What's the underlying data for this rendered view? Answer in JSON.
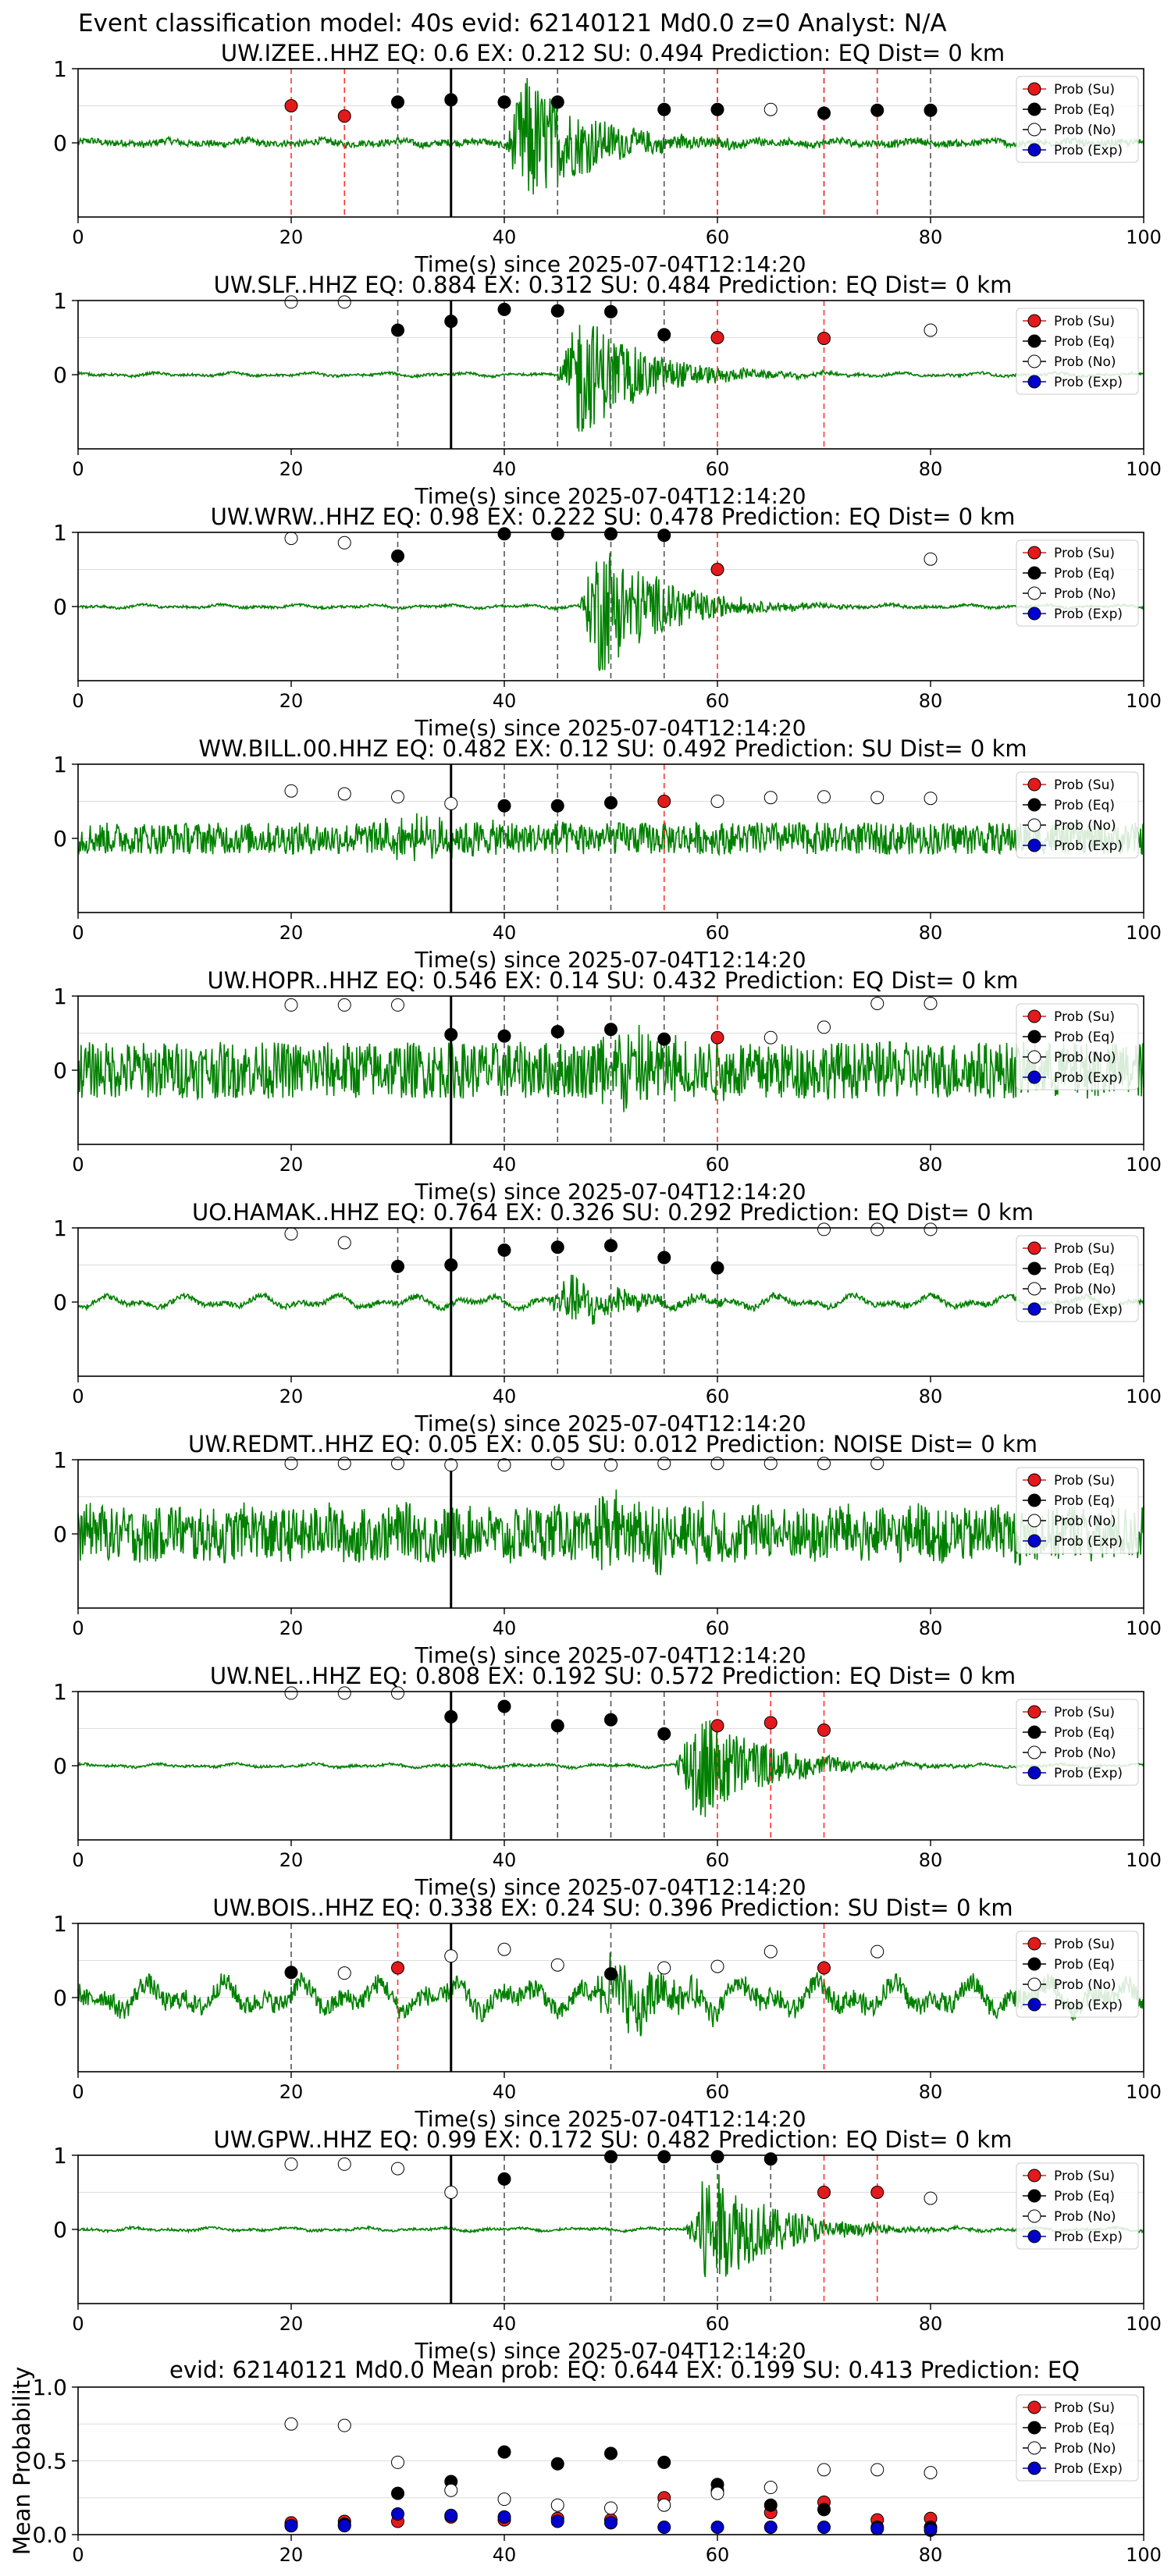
{
  "figure_title": "Event classification model: 40s evid: 62140121 Md0.0 z=0 Analyst: N/A",
  "legend_labels": [
    "Prob (Su)",
    "Prob (Eq)",
    "Prob (No)",
    "Prob (Exp)"
  ],
  "colors": {
    "waveform": "#008000",
    "su": "#e31a1c",
    "eq": "#000000",
    "no": "#ffffff",
    "exp": "#0000cc",
    "pick_red": "#ff3333",
    "pick_dark": "#555555",
    "grid": "#dddddd"
  },
  "chart_data": [
    {
      "type": "line",
      "station": "UW.IZEE..HHZ",
      "title": "UW.IZEE..HHZ   EQ: 0.6  EX: 0.212  SU: 0.494   Prediction: EQ    Dist= 0 km",
      "xlabel": "Time(s) since 2025-07-04T12:14:20",
      "xlim": [
        0,
        100
      ],
      "ylim": [
        -1,
        1
      ],
      "xticks": [
        "0",
        "20",
        "40",
        "60",
        "80",
        "100"
      ],
      "yticks": [
        "1",
        "0"
      ],
      "waveform": {
        "character": "moderate",
        "burst_center": 42,
        "burst_amp": 0.95
      },
      "red_lines": [
        20,
        25,
        60,
        70,
        75
      ],
      "dark_lines": [
        30,
        40,
        45,
        55,
        60,
        70,
        75,
        80
      ],
      "solid_line": 35,
      "points": [
        {
          "x": 20,
          "y": 0.5,
          "cls": "su"
        },
        {
          "x": 25,
          "y": 0.36,
          "cls": "su"
        },
        {
          "x": 30,
          "y": 0.55,
          "cls": "eq"
        },
        {
          "x": 35,
          "y": 0.58,
          "cls": "eq"
        },
        {
          "x": 40,
          "y": 0.55,
          "cls": "eq"
        },
        {
          "x": 45,
          "y": 0.55,
          "cls": "eq"
        },
        {
          "x": 55,
          "y": 0.45,
          "cls": "eq"
        },
        {
          "x": 60,
          "y": 0.45,
          "cls": "eq"
        },
        {
          "x": 65,
          "y": 0.45,
          "cls": "no"
        },
        {
          "x": 70,
          "y": 0.4,
          "cls": "eq"
        },
        {
          "x": 75,
          "y": 0.44,
          "cls": "eq"
        },
        {
          "x": 80,
          "y": 0.44,
          "cls": "eq"
        }
      ]
    },
    {
      "type": "line",
      "station": "UW.SLF..HHZ",
      "title": "UW.SLF..HHZ   EQ: 0.884  EX: 0.312  SU: 0.484   Prediction: EQ    Dist= 0 km",
      "xlabel": "Time(s) since 2025-07-04T12:14:20",
      "xlim": [
        0,
        100
      ],
      "ylim": [
        -1,
        1
      ],
      "xticks": [
        "0",
        "20",
        "40",
        "60",
        "80",
        "100"
      ],
      "yticks": [
        "1",
        "0"
      ],
      "waveform": {
        "character": "quiet",
        "burst_center": 47,
        "burst_amp": 0.9
      },
      "red_lines": [
        60,
        70
      ],
      "dark_lines": [
        30,
        40,
        45,
        50,
        55
      ],
      "solid_line": 35,
      "points": [
        {
          "x": 20,
          "y": 0.98,
          "cls": "no"
        },
        {
          "x": 25,
          "y": 0.98,
          "cls": "no"
        },
        {
          "x": 30,
          "y": 0.6,
          "cls": "eq"
        },
        {
          "x": 35,
          "y": 0.72,
          "cls": "eq"
        },
        {
          "x": 40,
          "y": 0.88,
          "cls": "eq"
        },
        {
          "x": 45,
          "y": 0.86,
          "cls": "eq"
        },
        {
          "x": 50,
          "y": 0.85,
          "cls": "eq"
        },
        {
          "x": 55,
          "y": 0.54,
          "cls": "eq"
        },
        {
          "x": 60,
          "y": 0.5,
          "cls": "su"
        },
        {
          "x": 70,
          "y": 0.49,
          "cls": "su"
        },
        {
          "x": 80,
          "y": 0.6,
          "cls": "no"
        }
      ]
    },
    {
      "type": "line",
      "station": "UW.WRW..HHZ",
      "title": "UW.WRW..HHZ   EQ: 0.98  EX: 0.222  SU: 0.478   Prediction: EQ    Dist= 0 km",
      "xlabel": "Time(s) since 2025-07-04T12:14:20",
      "xlim": [
        0,
        100
      ],
      "ylim": [
        -1,
        1
      ],
      "xticks": [
        "0",
        "20",
        "40",
        "60",
        "80",
        "100"
      ],
      "yticks": [
        "1",
        "0"
      ],
      "waveform": {
        "character": "quiet",
        "burst_center": 49,
        "burst_amp": 0.95
      },
      "red_lines": [
        60
      ],
      "dark_lines": [
        30,
        40,
        45,
        50,
        55
      ],
      "solid_line": null,
      "points": [
        {
          "x": 20,
          "y": 0.92,
          "cls": "no"
        },
        {
          "x": 25,
          "y": 0.86,
          "cls": "no"
        },
        {
          "x": 30,
          "y": 0.68,
          "cls": "eq"
        },
        {
          "x": 40,
          "y": 0.98,
          "cls": "eq"
        },
        {
          "x": 45,
          "y": 0.98,
          "cls": "eq"
        },
        {
          "x": 50,
          "y": 0.98,
          "cls": "eq"
        },
        {
          "x": 55,
          "y": 0.96,
          "cls": "eq"
        },
        {
          "x": 60,
          "y": 0.5,
          "cls": "su"
        },
        {
          "x": 80,
          "y": 0.64,
          "cls": "no"
        }
      ]
    },
    {
      "type": "line",
      "station": "WW.BILL.00.HHZ",
      "title": "WW.BILL.00.HHZ   EQ: 0.482  EX: 0.12  SU: 0.492   Prediction: SU    Dist= 0 km",
      "xlabel": "Time(s) since 2025-07-04T12:14:20",
      "xlim": [
        0,
        100
      ],
      "ylim": [
        -1,
        1
      ],
      "xticks": [
        "0",
        "20",
        "40",
        "60",
        "80",
        "100"
      ],
      "yticks": [
        "1",
        "0"
      ],
      "waveform": {
        "character": "noisy",
        "burst_center": 30,
        "burst_amp": 0.2
      },
      "red_lines": [
        55
      ],
      "dark_lines": [
        40,
        45,
        50
      ],
      "solid_line": 35,
      "points": [
        {
          "x": 20,
          "y": 0.64,
          "cls": "no"
        },
        {
          "x": 25,
          "y": 0.6,
          "cls": "no"
        },
        {
          "x": 30,
          "y": 0.56,
          "cls": "no"
        },
        {
          "x": 35,
          "y": 0.47,
          "cls": "no"
        },
        {
          "x": 40,
          "y": 0.44,
          "cls": "eq"
        },
        {
          "x": 45,
          "y": 0.44,
          "cls": "eq"
        },
        {
          "x": 50,
          "y": 0.48,
          "cls": "eq"
        },
        {
          "x": 55,
          "y": 0.5,
          "cls": "su"
        },
        {
          "x": 60,
          "y": 0.5,
          "cls": "no"
        },
        {
          "x": 65,
          "y": 0.55,
          "cls": "no"
        },
        {
          "x": 70,
          "y": 0.56,
          "cls": "no"
        },
        {
          "x": 75,
          "y": 0.55,
          "cls": "no"
        },
        {
          "x": 80,
          "y": 0.54,
          "cls": "no"
        }
      ]
    },
    {
      "type": "line",
      "station": "UW.HOPR..HHZ",
      "title": "UW.HOPR..HHZ   EQ: 0.546  EX: 0.14  SU: 0.432   Prediction: EQ    Dist= 0 km",
      "xlabel": "Time(s) since 2025-07-04T12:14:20",
      "xlim": [
        0,
        100
      ],
      "ylim": [
        -1,
        1
      ],
      "xticks": [
        "0",
        "20",
        "40",
        "60",
        "80",
        "100"
      ],
      "yticks": [
        "1",
        "0"
      ],
      "waveform": {
        "character": "verynoisy",
        "burst_center": 50,
        "burst_amp": 0.5
      },
      "red_lines": [
        60
      ],
      "dark_lines": [
        40,
        45,
        50,
        55
      ],
      "solid_line": 35,
      "points": [
        {
          "x": 20,
          "y": 0.88,
          "cls": "no"
        },
        {
          "x": 25,
          "y": 0.88,
          "cls": "no"
        },
        {
          "x": 30,
          "y": 0.88,
          "cls": "no"
        },
        {
          "x": 35,
          "y": 0.48,
          "cls": "eq"
        },
        {
          "x": 40,
          "y": 0.46,
          "cls": "eq"
        },
        {
          "x": 45,
          "y": 0.52,
          "cls": "eq"
        },
        {
          "x": 50,
          "y": 0.55,
          "cls": "eq"
        },
        {
          "x": 55,
          "y": 0.42,
          "cls": "eq"
        },
        {
          "x": 60,
          "y": 0.44,
          "cls": "su"
        },
        {
          "x": 65,
          "y": 0.44,
          "cls": "no"
        },
        {
          "x": 70,
          "y": 0.58,
          "cls": "no"
        },
        {
          "x": 75,
          "y": 0.9,
          "cls": "no"
        },
        {
          "x": 80,
          "y": 0.9,
          "cls": "no"
        }
      ]
    },
    {
      "type": "line",
      "station": "UO.HAMAK..HHZ",
      "title": "UO.HAMAK..HHZ   EQ: 0.764  EX: 0.326  SU: 0.292   Prediction: EQ    Dist= 0 km",
      "xlabel": "Time(s) since 2025-07-04T12:14:20",
      "xlim": [
        0,
        100
      ],
      "ylim": [
        -1,
        1
      ],
      "xticks": [
        "0",
        "20",
        "40",
        "60",
        "80",
        "100"
      ],
      "yticks": [
        "1",
        "0"
      ],
      "waveform": {
        "character": "wavy",
        "burst_center": 46,
        "burst_amp": 0.35
      },
      "red_lines": [],
      "dark_lines": [
        30,
        40,
        45,
        50,
        55,
        60
      ],
      "solid_line": 35,
      "points": [
        {
          "x": 20,
          "y": 0.92,
          "cls": "no"
        },
        {
          "x": 25,
          "y": 0.8,
          "cls": "no"
        },
        {
          "x": 30,
          "y": 0.48,
          "cls": "eq"
        },
        {
          "x": 35,
          "y": 0.5,
          "cls": "eq"
        },
        {
          "x": 40,
          "y": 0.7,
          "cls": "eq"
        },
        {
          "x": 45,
          "y": 0.74,
          "cls": "eq"
        },
        {
          "x": 50,
          "y": 0.76,
          "cls": "eq"
        },
        {
          "x": 55,
          "y": 0.6,
          "cls": "eq"
        },
        {
          "x": 60,
          "y": 0.46,
          "cls": "eq"
        },
        {
          "x": 70,
          "y": 0.98,
          "cls": "no"
        },
        {
          "x": 75,
          "y": 0.98,
          "cls": "no"
        },
        {
          "x": 80,
          "y": 0.98,
          "cls": "no"
        }
      ]
    },
    {
      "type": "line",
      "station": "UW.REDMT..HHZ",
      "title": "UW.REDMT..HHZ   EQ: 0.05  EX: 0.05  SU: 0.012   Prediction: NOISE    Dist= 0 km",
      "xlabel": "Time(s) since 2025-07-04T12:14:20",
      "xlim": [
        0,
        100
      ],
      "ylim": [
        -1,
        1
      ],
      "xticks": [
        "0",
        "20",
        "40",
        "60",
        "80",
        "100"
      ],
      "yticks": [
        "1",
        "0"
      ],
      "waveform": {
        "character": "bignoise",
        "burst_center": 50,
        "burst_amp": 0.4
      },
      "red_lines": [],
      "dark_lines": [],
      "solid_line": 35,
      "points": [
        {
          "x": 20,
          "y": 0.95,
          "cls": "no"
        },
        {
          "x": 25,
          "y": 0.95,
          "cls": "no"
        },
        {
          "x": 30,
          "y": 0.95,
          "cls": "no"
        },
        {
          "x": 35,
          "y": 0.93,
          "cls": "no"
        },
        {
          "x": 40,
          "y": 0.93,
          "cls": "no"
        },
        {
          "x": 45,
          "y": 0.95,
          "cls": "no"
        },
        {
          "x": 50,
          "y": 0.93,
          "cls": "no"
        },
        {
          "x": 55,
          "y": 0.95,
          "cls": "no"
        },
        {
          "x": 60,
          "y": 0.95,
          "cls": "no"
        },
        {
          "x": 65,
          "y": 0.95,
          "cls": "no"
        },
        {
          "x": 70,
          "y": 0.95,
          "cls": "no"
        },
        {
          "x": 75,
          "y": 0.95,
          "cls": "no"
        }
      ]
    },
    {
      "type": "line",
      "station": "UW.NEL..HHZ",
      "title": "UW.NEL..HHZ   EQ: 0.808  EX: 0.192  SU: 0.572    Prediction: EQ    Dist= 0 km",
      "xlabel": "Time(s) since 2025-07-04T12:14:20",
      "xlim": [
        0,
        100
      ],
      "ylim": [
        -1,
        1
      ],
      "xticks": [
        "0",
        "20",
        "40",
        "60",
        "80",
        "100"
      ],
      "yticks": [
        "1",
        "0"
      ],
      "waveform": {
        "character": "quiet",
        "burst_center": 58,
        "burst_amp": 0.85
      },
      "red_lines": [
        60,
        65,
        70
      ],
      "dark_lines": [
        40,
        45,
        50,
        55
      ],
      "solid_line": 35,
      "points": [
        {
          "x": 20,
          "y": 0.98,
          "cls": "no"
        },
        {
          "x": 25,
          "y": 0.98,
          "cls": "no"
        },
        {
          "x": 30,
          "y": 0.98,
          "cls": "no"
        },
        {
          "x": 35,
          "y": 0.66,
          "cls": "eq"
        },
        {
          "x": 40,
          "y": 0.8,
          "cls": "eq"
        },
        {
          "x": 45,
          "y": 0.54,
          "cls": "eq"
        },
        {
          "x": 50,
          "y": 0.62,
          "cls": "eq"
        },
        {
          "x": 55,
          "y": 0.43,
          "cls": "eq"
        },
        {
          "x": 60,
          "y": 0.54,
          "cls": "su"
        },
        {
          "x": 65,
          "y": 0.58,
          "cls": "su"
        },
        {
          "x": 70,
          "y": 0.48,
          "cls": "su"
        }
      ]
    },
    {
      "type": "line",
      "station": "UW.BOIS..HHZ",
      "title": "UW.BOIS..HHZ   EQ: 0.338  EX: 0.24  SU: 0.396   Prediction: SU    Dist= 0 km",
      "xlabel": "Time(s) since 2025-07-04T12:14:20",
      "xlim": [
        0,
        100
      ],
      "ylim": [
        -1,
        1
      ],
      "xticks": [
        "0",
        "20",
        "40",
        "60",
        "80",
        "100"
      ],
      "yticks": [
        "1",
        "0"
      ],
      "waveform": {
        "character": "bigwavy",
        "burst_center": 50,
        "burst_amp": 0.5
      },
      "red_lines": [
        30,
        70
      ],
      "dark_lines": [
        20,
        50
      ],
      "solid_line": 35,
      "points": [
        {
          "x": 20,
          "y": 0.34,
          "cls": "eq"
        },
        {
          "x": 25,
          "y": 0.33,
          "cls": "no"
        },
        {
          "x": 30,
          "y": 0.4,
          "cls": "su"
        },
        {
          "x": 35,
          "y": 0.56,
          "cls": "no"
        },
        {
          "x": 40,
          "y": 0.65,
          "cls": "no"
        },
        {
          "x": 45,
          "y": 0.44,
          "cls": "no"
        },
        {
          "x": 50,
          "y": 0.32,
          "cls": "eq"
        },
        {
          "x": 55,
          "y": 0.4,
          "cls": "no"
        },
        {
          "x": 60,
          "y": 0.42,
          "cls": "no"
        },
        {
          "x": 65,
          "y": 0.62,
          "cls": "no"
        },
        {
          "x": 70,
          "y": 0.4,
          "cls": "su"
        },
        {
          "x": 75,
          "y": 0.62,
          "cls": "no"
        }
      ]
    },
    {
      "type": "line",
      "station": "UW.GPW..HHZ",
      "title": "UW.GPW..HHZ   EQ: 0.99  EX: 0.172  SU: 0.482   Prediction: EQ    Dist= 0 km",
      "xlabel": "Time(s) since 2025-07-04T12:14:20",
      "xlim": [
        0,
        100
      ],
      "ylim": [
        -1,
        1
      ],
      "xticks": [
        "0",
        "20",
        "40",
        "60",
        "80",
        "100"
      ],
      "yticks": [
        "1",
        "0"
      ],
      "waveform": {
        "character": "quiet",
        "burst_center": 59,
        "burst_amp": 0.9
      },
      "red_lines": [
        70,
        75
      ],
      "dark_lines": [
        40,
        50,
        55,
        60,
        65
      ],
      "solid_line": 35,
      "points": [
        {
          "x": 20,
          "y": 0.88,
          "cls": "no"
        },
        {
          "x": 25,
          "y": 0.88,
          "cls": "no"
        },
        {
          "x": 30,
          "y": 0.82,
          "cls": "no"
        },
        {
          "x": 35,
          "y": 0.5,
          "cls": "no"
        },
        {
          "x": 40,
          "y": 0.68,
          "cls": "eq"
        },
        {
          "x": 50,
          "y": 0.98,
          "cls": "eq"
        },
        {
          "x": 55,
          "y": 0.98,
          "cls": "eq"
        },
        {
          "x": 60,
          "y": 0.98,
          "cls": "eq"
        },
        {
          "x": 65,
          "y": 0.95,
          "cls": "eq"
        },
        {
          "x": 70,
          "y": 0.5,
          "cls": "su"
        },
        {
          "x": 75,
          "y": 0.5,
          "cls": "su"
        },
        {
          "x": 80,
          "y": 0.42,
          "cls": "no"
        }
      ]
    },
    {
      "type": "scatter",
      "title": "evid: 62140121   Md0.0   Mean prob:   EQ: 0.644  EX: 0.199  SU: 0.413   Prediction: EQ",
      "ylabel": "Mean Probability",
      "xlim": [
        0,
        100
      ],
      "ylim": [
        0,
        1
      ],
      "xticks": [
        "0",
        "20",
        "40",
        "60",
        "80",
        "100"
      ],
      "yticks": [
        "1.0",
        "0.5",
        "0.0"
      ],
      "x": [
        20,
        25,
        30,
        35,
        40,
        45,
        50,
        55,
        60,
        65,
        70,
        75,
        80
      ],
      "series": [
        {
          "name": "Prob (Su)",
          "cls": "su",
          "values": [
            0.08,
            0.09,
            0.09,
            0.12,
            0.1,
            0.11,
            0.1,
            0.25,
            0.3,
            0.15,
            0.22,
            0.1,
            0.11
          ]
        },
        {
          "name": "Prob (Eq)",
          "cls": "eq",
          "values": [
            0.06,
            0.07,
            0.28,
            0.36,
            0.56,
            0.48,
            0.55,
            0.49,
            0.34,
            0.2,
            0.17,
            0.05,
            0.05
          ]
        },
        {
          "name": "Prob (No)",
          "cls": "no",
          "values": [
            0.75,
            0.74,
            0.49,
            0.3,
            0.24,
            0.2,
            0.18,
            0.2,
            0.28,
            0.32,
            0.44,
            0.44,
            0.42
          ]
        },
        {
          "name": "Prob (Exp)",
          "cls": "exp",
          "values": [
            0.06,
            0.06,
            0.14,
            0.13,
            0.12,
            0.09,
            0.08,
            0.05,
            0.05,
            0.05,
            0.05,
            0.04,
            0.03
          ]
        }
      ]
    }
  ]
}
